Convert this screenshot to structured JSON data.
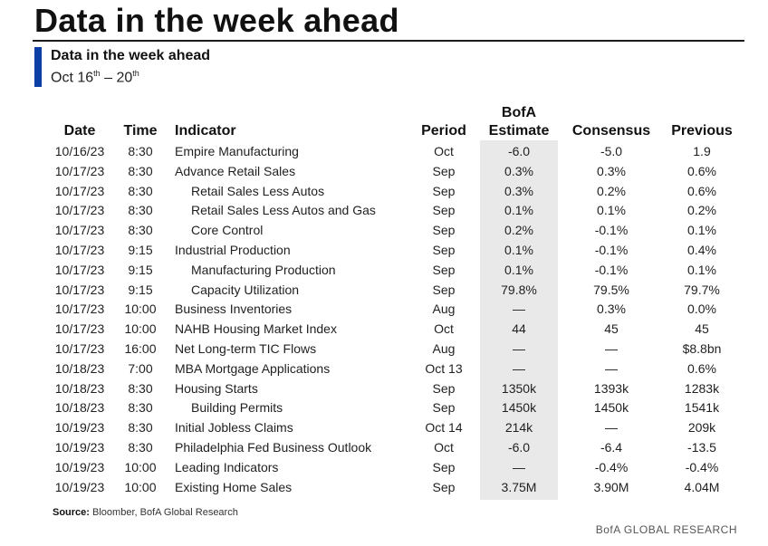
{
  "header": {
    "main_title": "Data in the week ahead",
    "sub_title": "Data in the week ahead",
    "dates_main": "Oct 16",
    "dates_sup1": "th",
    "dates_mid": " – 20",
    "dates_sup2": "th",
    "accent_color": "#0b3fa6"
  },
  "table": {
    "columns": {
      "date": "Date",
      "time": "Time",
      "indicator": "Indicator",
      "period": "Period",
      "estimate_top": "BofA",
      "estimate_bottom": "Estimate",
      "consensus": "Consensus",
      "previous": "Previous"
    },
    "rows": [
      {
        "date": "10/16/23",
        "time": "8:30",
        "indicator": "Empire Manufacturing",
        "indent": false,
        "period": "Oct",
        "estimate": "-6.0",
        "consensus": "-5.0",
        "previous": "1.9"
      },
      {
        "date": "10/17/23",
        "time": "8:30",
        "indicator": "Advance Retail Sales",
        "indent": false,
        "period": "Sep",
        "estimate": "0.3%",
        "consensus": "0.3%",
        "previous": "0.6%"
      },
      {
        "date": "10/17/23",
        "time": "8:30",
        "indicator": "Retail Sales Less Autos",
        "indent": true,
        "period": "Sep",
        "estimate": "0.3%",
        "consensus": "0.2%",
        "previous": "0.6%"
      },
      {
        "date": "10/17/23",
        "time": "8:30",
        "indicator": "Retail Sales Less Autos and Gas",
        "indent": true,
        "period": "Sep",
        "estimate": "0.1%",
        "consensus": "0.1%",
        "previous": "0.2%"
      },
      {
        "date": "10/17/23",
        "time": "8:30",
        "indicator": "Core Control",
        "indent": true,
        "period": "Sep",
        "estimate": "0.2%",
        "consensus": "-0.1%",
        "previous": "0.1%"
      },
      {
        "date": "10/17/23",
        "time": "9:15",
        "indicator": "Industrial Production",
        "indent": false,
        "period": "Sep",
        "estimate": "0.1%",
        "consensus": "-0.1%",
        "previous": "0.4%"
      },
      {
        "date": "10/17/23",
        "time": "9:15",
        "indicator": "Manufacturing Production",
        "indent": true,
        "period": "Sep",
        "estimate": "0.1%",
        "consensus": "-0.1%",
        "previous": "0.1%"
      },
      {
        "date": "10/17/23",
        "time": "9:15",
        "indicator": "Capacity Utilization",
        "indent": true,
        "period": "Sep",
        "estimate": "79.8%",
        "consensus": "79.5%",
        "previous": "79.7%"
      },
      {
        "date": "10/17/23",
        "time": "10:00",
        "indicator": "Business Inventories",
        "indent": false,
        "period": "Aug",
        "estimate": "—",
        "consensus": "0.3%",
        "previous": "0.0%"
      },
      {
        "date": "10/17/23",
        "time": "10:00",
        "indicator": "NAHB Housing Market Index",
        "indent": false,
        "period": "Oct",
        "estimate": "44",
        "consensus": "45",
        "previous": "45"
      },
      {
        "date": "10/17/23",
        "time": "16:00",
        "indicator": "Net Long-term TIC Flows",
        "indent": false,
        "period": "Aug",
        "estimate": "—",
        "consensus": "—",
        "previous": "$8.8bn"
      },
      {
        "date": "10/18/23",
        "time": "7:00",
        "indicator": "MBA Mortgage Applications",
        "indent": false,
        "period": "Oct 13",
        "estimate": "—",
        "consensus": "—",
        "previous": "0.6%"
      },
      {
        "date": "10/18/23",
        "time": "8:30",
        "indicator": "Housing Starts",
        "indent": false,
        "period": "Sep",
        "estimate": "1350k",
        "consensus": "1393k",
        "previous": "1283k"
      },
      {
        "date": "10/18/23",
        "time": "8:30",
        "indicator": "Building Permits",
        "indent": true,
        "period": "Sep",
        "estimate": "1450k",
        "consensus": "1450k",
        "previous": "1541k"
      },
      {
        "date": "10/19/23",
        "time": "8:30",
        "indicator": "Initial Jobless Claims",
        "indent": false,
        "period": "Oct 14",
        "estimate": "214k",
        "consensus": "—",
        "previous": "209k"
      },
      {
        "date": "10/19/23",
        "time": "8:30",
        "indicator": "Philadelphia Fed Business Outlook",
        "indent": false,
        "period": "Oct",
        "estimate": "-6.0",
        "consensus": "-6.4",
        "previous": "-13.5"
      },
      {
        "date": "10/19/23",
        "time": "10:00",
        "indicator": "Leading Indicators",
        "indent": false,
        "period": "Sep",
        "estimate": "—",
        "consensus": "-0.4%",
        "previous": "-0.4%"
      },
      {
        "date": "10/19/23",
        "time": "10:00",
        "indicator": "Existing Home Sales",
        "indent": false,
        "period": "Sep",
        "estimate": "3.75M",
        "consensus": "3.90M",
        "previous": "4.04M"
      }
    ]
  },
  "footer": {
    "source_label": "Source:",
    "source_text": " Bloomber, BofA Global Research",
    "brand": "BofA GLOBAL RESEARCH"
  }
}
